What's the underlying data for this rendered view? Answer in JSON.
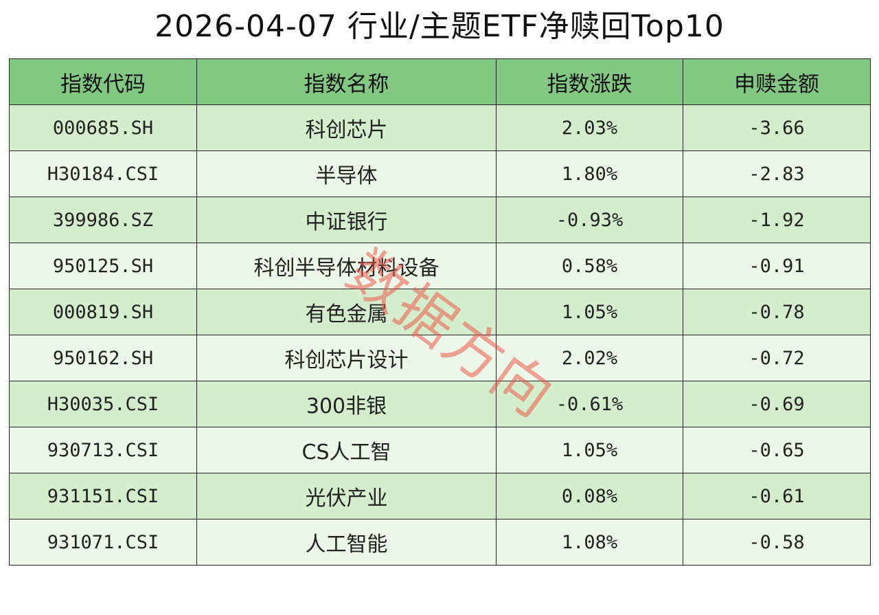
{
  "page": {
    "title": "2026-04-07 行业/主题ETF净赎回Top10",
    "watermark": "数据方向"
  },
  "colors": {
    "header_bg": "#82c882",
    "row_odd_bg": "#d3edcd",
    "row_even_bg": "#ecf7e9",
    "watermark": "#eb5a4b"
  },
  "table": {
    "headers": [
      "指数代码",
      "指数名称",
      "指数涨跌",
      "申赎金额"
    ],
    "rows": [
      [
        "000685.SH",
        "科创芯片",
        "2.03%",
        "-3.66"
      ],
      [
        "H30184.CSI",
        "半导体",
        "1.80%",
        "-2.83"
      ],
      [
        "399986.SZ",
        "中证银行",
        "-0.93%",
        "-1.92"
      ],
      [
        "950125.SH",
        "科创半导体材料设备",
        "0.58%",
        "-0.91"
      ],
      [
        "000819.SH",
        "有色金属",
        "1.05%",
        "-0.78"
      ],
      [
        "950162.SH",
        "科创芯片设计",
        "2.02%",
        "-0.72"
      ],
      [
        "H30035.CSI",
        "300非银",
        "-0.61%",
        "-0.69"
      ],
      [
        "930713.CSI",
        "CS人工智",
        "1.05%",
        "-0.65"
      ],
      [
        "931151.CSI",
        "光伏产业",
        "0.08%",
        "-0.61"
      ],
      [
        "931071.CSI",
        "人工智能",
        "1.08%",
        "-0.58"
      ]
    ]
  },
  "chart_data": {
    "type": "table",
    "title": "2026-04-07 行业/主题ETF净赎回Top10",
    "columns": [
      "指数代码",
      "指数名称",
      "指数涨跌",
      "申赎金额"
    ],
    "rows": [
      [
        "000685.SH",
        "科创芯片",
        "2.03%",
        "-3.66"
      ],
      [
        "H30184.CSI",
        "半导体",
        "1.80%",
        "-2.83"
      ],
      [
        "399986.SZ",
        "中证银行",
        "-0.93%",
        "-1.92"
      ],
      [
        "950125.SH",
        "科创半导体材料设备",
        "0.58%",
        "-0.91"
      ],
      [
        "000819.SH",
        "有色金属",
        "1.05%",
        "-0.78"
      ],
      [
        "950162.SH",
        "科创芯片设计",
        "2.02%",
        "-0.72"
      ],
      [
        "H30035.CSI",
        "300非银",
        "-0.61%",
        "-0.69"
      ],
      [
        "930713.CSI",
        "CS人工智",
        "1.05%",
        "-0.65"
      ],
      [
        "931151.CSI",
        "光伏产业",
        "0.08%",
        "-0.61"
      ],
      [
        "931071.CSI",
        "人工智能",
        "1.08%",
        "-0.58"
      ]
    ]
  }
}
